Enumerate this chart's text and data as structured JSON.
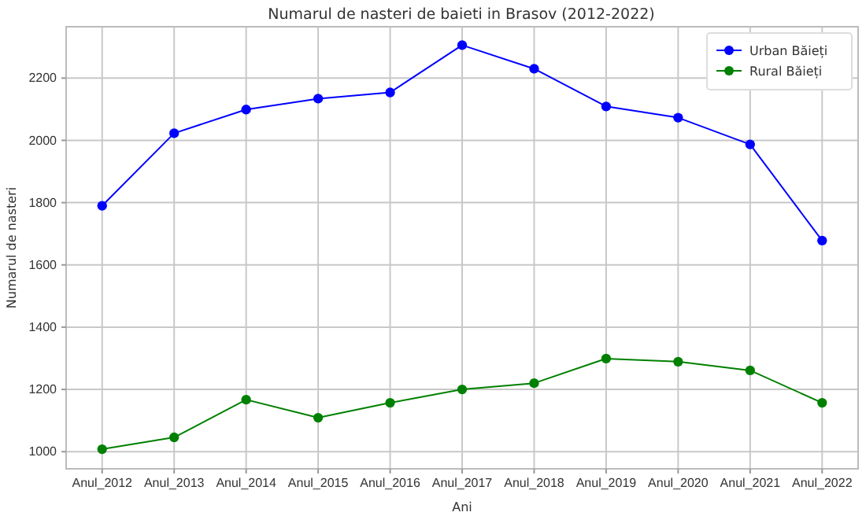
{
  "chart_data": {
    "type": "line",
    "title": "Numarul de nasteri de baieti in Brasov (2012-2022)",
    "xlabel": "Ani",
    "ylabel": "Numarul de nasteri",
    "categories": [
      "Anul_2012",
      "Anul_2013",
      "Anul_2014",
      "Anul_2015",
      "Anul_2016",
      "Anul_2017",
      "Anul_2018",
      "Anul_2019",
      "Anul_2020",
      "Anul_2021",
      "Anul_2022"
    ],
    "series": [
      {
        "name": "Urban Băieți",
        "color": "#0000ff",
        "values": [
          1790,
          2023,
          2099,
          2134,
          2154,
          2306,
          2230,
          2109,
          2073,
          1987,
          1678
        ]
      },
      {
        "name": "Rural Băieți",
        "color": "#008000",
        "values": [
          1008,
          1046,
          1167,
          1109,
          1157,
          1200,
          1220,
          1299,
          1289,
          1261,
          1157
        ]
      }
    ],
    "ylim": [
      945,
      2365
    ],
    "yticks": [
      1000,
      1200,
      1400,
      1600,
      1800,
      2000,
      2200
    ],
    "grid": true,
    "legend": "top right",
    "marker": "circle",
    "line_style": "solid"
  }
}
